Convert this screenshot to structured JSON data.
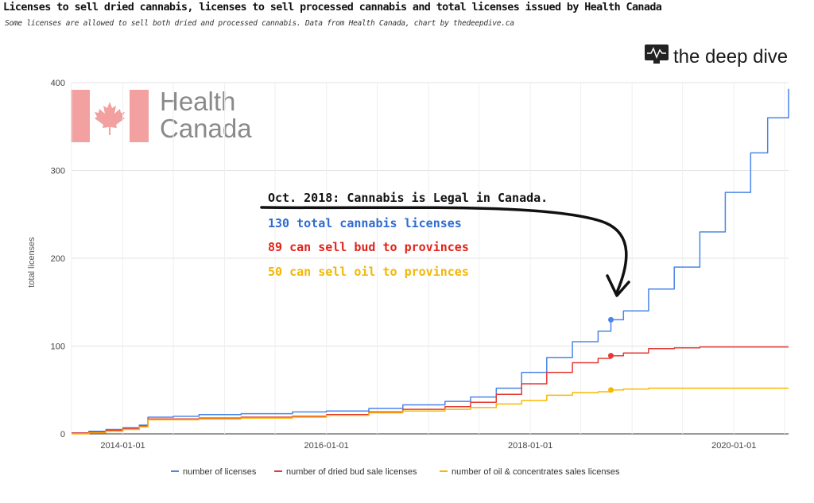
{
  "header": {
    "title": "Licenses to sell dried cannabis, licenses to sell processed cannabis and total licenses issued by Health Canada",
    "subtitle": "Some licenses are allowed to sell both dried and processed cannabis. Data from Health Canada, chart by thedeepdive.ca"
  },
  "logos": {
    "health_canada_line1": "Health",
    "health_canada_line2": "Canada",
    "deep_dive": "the deep dive"
  },
  "annotation": {
    "headline": "Oct. 2018: Cannabis is Legal in Canada.",
    "line1": "130 total cannabis licenses",
    "line2": "89 can sell bud to provinces",
    "line3": "50 can sell oil to provinces"
  },
  "colors": {
    "licenses": "#4a86e8",
    "dried": "#e53935",
    "oil": "#f9b800",
    "annotation_blue": "#2e6bd1",
    "annotation_red": "#e0241b",
    "annotation_yellow": "#f2b705",
    "health_canada_red": "#f2a0a0"
  },
  "chart_data": {
    "type": "line",
    "title": "Licenses to sell dried cannabis, licenses to sell processed cannabis and total licenses issued by Health Canada",
    "xlabel": "",
    "ylabel": "total licenses",
    "xlim": [
      "2013-07-01",
      "2020-07-15"
    ],
    "ylim": [
      0,
      400
    ],
    "yticks": [
      0,
      100,
      200,
      300,
      400
    ],
    "xtick_labels": [
      "2014-01-01",
      "2016-01-01",
      "2018-01-01",
      "2020-01-01"
    ],
    "grid": true,
    "legend_position": "bottom",
    "series": [
      {
        "name": "number of licenses",
        "color": "#4a86e8",
        "points": [
          [
            "2013-07-01",
            1
          ],
          [
            "2013-09-01",
            3
          ],
          [
            "2013-11-01",
            5
          ],
          [
            "2014-01-01",
            7
          ],
          [
            "2014-03-01",
            10
          ],
          [
            "2014-04-01",
            19
          ],
          [
            "2014-07-01",
            20
          ],
          [
            "2014-10-01",
            22
          ],
          [
            "2015-03-01",
            23
          ],
          [
            "2015-09-01",
            25
          ],
          [
            "2016-01-01",
            26
          ],
          [
            "2016-06-01",
            29
          ],
          [
            "2016-10-01",
            33
          ],
          [
            "2017-03-01",
            37
          ],
          [
            "2017-06-01",
            42
          ],
          [
            "2017-09-01",
            52
          ],
          [
            "2017-12-01",
            70
          ],
          [
            "2018-03-01",
            87
          ],
          [
            "2018-06-01",
            105
          ],
          [
            "2018-09-01",
            117
          ],
          [
            "2018-10-17",
            130
          ],
          [
            "2018-12-01",
            140
          ],
          [
            "2019-03-01",
            165
          ],
          [
            "2019-06-01",
            190
          ],
          [
            "2019-09-01",
            230
          ],
          [
            "2019-12-01",
            275
          ],
          [
            "2020-03-01",
            320
          ],
          [
            "2020-05-01",
            360
          ],
          [
            "2020-07-15",
            393
          ]
        ]
      },
      {
        "name": "number of dried bud sale licenses",
        "color": "#e53935",
        "points": [
          [
            "2013-07-01",
            1
          ],
          [
            "2013-09-01",
            2
          ],
          [
            "2013-11-01",
            4
          ],
          [
            "2014-01-01",
            6
          ],
          [
            "2014-03-01",
            9
          ],
          [
            "2014-04-01",
            17
          ],
          [
            "2014-07-01",
            17
          ],
          [
            "2014-10-01",
            18
          ],
          [
            "2015-03-01",
            19
          ],
          [
            "2015-09-01",
            20
          ],
          [
            "2016-01-01",
            22
          ],
          [
            "2016-06-01",
            25
          ],
          [
            "2016-10-01",
            28
          ],
          [
            "2017-03-01",
            31
          ],
          [
            "2017-06-01",
            36
          ],
          [
            "2017-09-01",
            45
          ],
          [
            "2017-12-01",
            57
          ],
          [
            "2018-03-01",
            70
          ],
          [
            "2018-06-01",
            81
          ],
          [
            "2018-09-01",
            86
          ],
          [
            "2018-10-17",
            89
          ],
          [
            "2018-12-01",
            92
          ],
          [
            "2019-03-01",
            97
          ],
          [
            "2019-06-01",
            98
          ],
          [
            "2019-09-01",
            99
          ],
          [
            "2019-12-01",
            99
          ],
          [
            "2020-07-15",
            99
          ]
        ]
      },
      {
        "name": "number of oil & concentrates sales licenses",
        "color": "#f9b800",
        "points": [
          [
            "2013-07-01",
            0
          ],
          [
            "2013-09-01",
            1
          ],
          [
            "2013-11-01",
            3
          ],
          [
            "2014-01-01",
            5
          ],
          [
            "2014-03-01",
            8
          ],
          [
            "2014-04-01",
            16
          ],
          [
            "2014-07-01",
            16
          ],
          [
            "2014-10-01",
            17
          ],
          [
            "2015-03-01",
            18
          ],
          [
            "2015-09-01",
            19
          ],
          [
            "2016-01-01",
            21
          ],
          [
            "2016-06-01",
            24
          ],
          [
            "2016-10-01",
            26
          ],
          [
            "2017-03-01",
            28
          ],
          [
            "2017-06-01",
            30
          ],
          [
            "2017-09-01",
            34
          ],
          [
            "2017-12-01",
            38
          ],
          [
            "2018-03-01",
            44
          ],
          [
            "2018-06-01",
            47
          ],
          [
            "2018-09-01",
            48
          ],
          [
            "2018-10-17",
            50
          ],
          [
            "2018-12-01",
            51
          ],
          [
            "2019-03-01",
            52
          ],
          [
            "2020-07-15",
            52
          ]
        ]
      }
    ],
    "highlight_points": [
      {
        "date": "2018-10-17",
        "series": "number of licenses",
        "value": 130
      },
      {
        "date": "2018-10-17",
        "series": "number of dried bud sale licenses",
        "value": 89
      },
      {
        "date": "2018-10-17",
        "series": "number of oil & concentrates sales licenses",
        "value": 50
      }
    ]
  }
}
